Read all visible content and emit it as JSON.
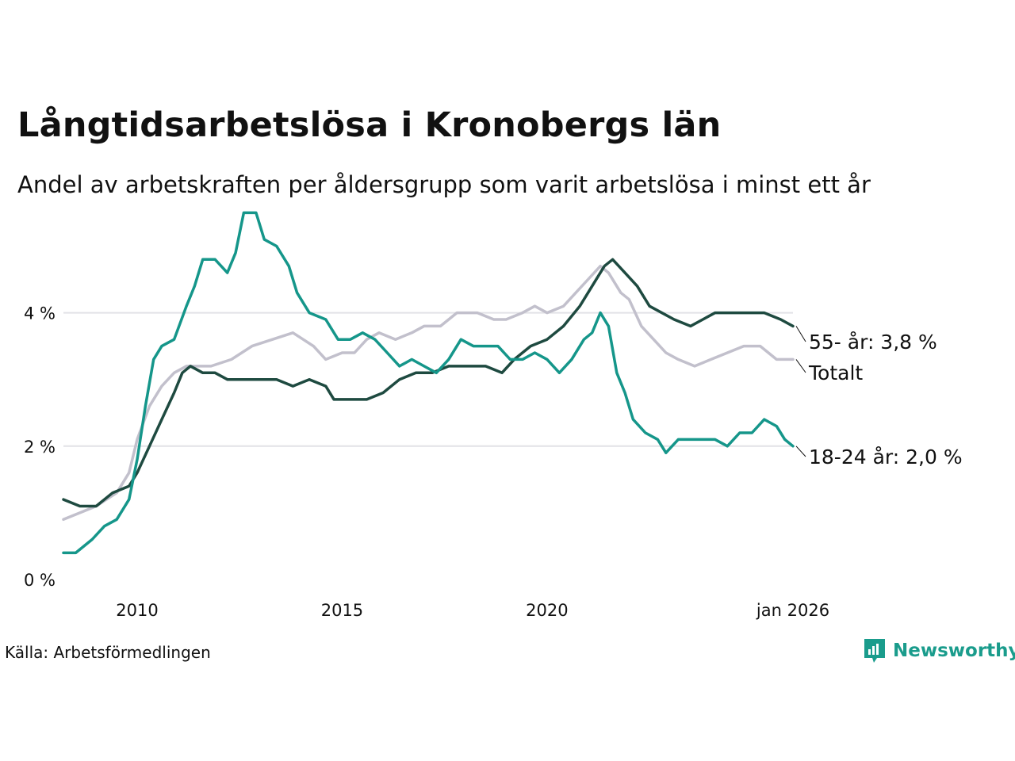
{
  "title": "Långtidsarbetslösa i Kronobergs län",
  "subtitle": "Andel av arbetskraften per åldersgrupp som varit arbetslösa i minst ett år",
  "source": "Källa: Arbetsförmedlingen",
  "brand": "Newsworthy",
  "colors": {
    "age_55_plus": "#1e4a40",
    "total": "#c2c0cc",
    "age_18_24": "#15968a",
    "grid": "#e2e2e6",
    "brand": "#1a9c8c"
  },
  "chart_data": {
    "type": "line",
    "title": "Långtidsarbetslösa i Kronobergs län",
    "xlabel": "",
    "ylabel": "",
    "xlim": [
      2008.2,
      2026.0
    ],
    "ylim": [
      0,
      5.6
    ],
    "y_ticks": [
      {
        "value": 0,
        "label": "0 %"
      },
      {
        "value": 2,
        "label": "2 %"
      },
      {
        "value": 4,
        "label": "4 %"
      }
    ],
    "x_ticks": [
      {
        "value": 2010,
        "label": "2010"
      },
      {
        "value": 2015,
        "label": "2015"
      },
      {
        "value": 2020,
        "label": "2020"
      },
      {
        "value": 2026,
        "label": "jan 2026"
      }
    ],
    "grid": "horizontal",
    "series": [
      {
        "name": "Totalt",
        "end_label": "Totalt",
        "color_key": "total",
        "points": [
          [
            2008.2,
            0.9
          ],
          [
            2008.6,
            1.0
          ],
          [
            2009.0,
            1.1
          ],
          [
            2009.5,
            1.3
          ],
          [
            2009.8,
            1.6
          ],
          [
            2010.0,
            2.1
          ],
          [
            2010.3,
            2.6
          ],
          [
            2010.6,
            2.9
          ],
          [
            2010.9,
            3.1
          ],
          [
            2011.2,
            3.2
          ],
          [
            2011.8,
            3.2
          ],
          [
            2012.3,
            3.3
          ],
          [
            2012.8,
            3.5
          ],
          [
            2013.3,
            3.6
          ],
          [
            2013.8,
            3.7
          ],
          [
            2014.3,
            3.5
          ],
          [
            2014.6,
            3.3
          ],
          [
            2015.0,
            3.4
          ],
          [
            2015.3,
            3.4
          ],
          [
            2015.6,
            3.6
          ],
          [
            2015.9,
            3.7
          ],
          [
            2016.3,
            3.6
          ],
          [
            2016.7,
            3.7
          ],
          [
            2017.0,
            3.8
          ],
          [
            2017.4,
            3.8
          ],
          [
            2017.8,
            4.0
          ],
          [
            2018.3,
            4.0
          ],
          [
            2018.7,
            3.9
          ],
          [
            2019.0,
            3.9
          ],
          [
            2019.4,
            4.0
          ],
          [
            2019.7,
            4.1
          ],
          [
            2020.0,
            4.0
          ],
          [
            2020.4,
            4.1
          ],
          [
            2020.7,
            4.3
          ],
          [
            2021.0,
            4.5
          ],
          [
            2021.3,
            4.7
          ],
          [
            2021.5,
            4.6
          ],
          [
            2021.8,
            4.3
          ],
          [
            2022.0,
            4.2
          ],
          [
            2022.3,
            3.8
          ],
          [
            2022.6,
            3.6
          ],
          [
            2022.9,
            3.4
          ],
          [
            2023.2,
            3.3
          ],
          [
            2023.6,
            3.2
          ],
          [
            2024.0,
            3.3
          ],
          [
            2024.4,
            3.4
          ],
          [
            2024.8,
            3.5
          ],
          [
            2025.2,
            3.5
          ],
          [
            2025.6,
            3.3
          ],
          [
            2026.0,
            3.3
          ]
        ]
      },
      {
        "name": "55- år",
        "end_label": "55- år: 3,8 %",
        "color_key": "age_55_plus",
        "points": [
          [
            2008.2,
            1.2
          ],
          [
            2008.6,
            1.1
          ],
          [
            2009.0,
            1.1
          ],
          [
            2009.4,
            1.3
          ],
          [
            2009.8,
            1.4
          ],
          [
            2010.0,
            1.6
          ],
          [
            2010.3,
            2.0
          ],
          [
            2010.6,
            2.4
          ],
          [
            2010.9,
            2.8
          ],
          [
            2011.1,
            3.1
          ],
          [
            2011.3,
            3.2
          ],
          [
            2011.6,
            3.1
          ],
          [
            2011.9,
            3.1
          ],
          [
            2012.2,
            3.0
          ],
          [
            2012.6,
            3.0
          ],
          [
            2013.0,
            3.0
          ],
          [
            2013.4,
            3.0
          ],
          [
            2013.8,
            2.9
          ],
          [
            2014.2,
            3.0
          ],
          [
            2014.6,
            2.9
          ],
          [
            2014.8,
            2.7
          ],
          [
            2015.2,
            2.7
          ],
          [
            2015.6,
            2.7
          ],
          [
            2016.0,
            2.8
          ],
          [
            2016.4,
            3.0
          ],
          [
            2016.8,
            3.1
          ],
          [
            2017.2,
            3.1
          ],
          [
            2017.6,
            3.2
          ],
          [
            2018.0,
            3.2
          ],
          [
            2018.5,
            3.2
          ],
          [
            2018.9,
            3.1
          ],
          [
            2019.2,
            3.3
          ],
          [
            2019.6,
            3.5
          ],
          [
            2020.0,
            3.6
          ],
          [
            2020.4,
            3.8
          ],
          [
            2020.8,
            4.1
          ],
          [
            2021.1,
            4.4
          ],
          [
            2021.4,
            4.7
          ],
          [
            2021.6,
            4.8
          ],
          [
            2021.9,
            4.6
          ],
          [
            2022.2,
            4.4
          ],
          [
            2022.5,
            4.1
          ],
          [
            2022.8,
            4.0
          ],
          [
            2023.1,
            3.9
          ],
          [
            2023.5,
            3.8
          ],
          [
            2023.8,
            3.9
          ],
          [
            2024.1,
            4.0
          ],
          [
            2024.5,
            4.0
          ],
          [
            2024.9,
            4.0
          ],
          [
            2025.3,
            4.0
          ],
          [
            2025.7,
            3.9
          ],
          [
            2026.0,
            3.8
          ]
        ]
      },
      {
        "name": "18-24 år",
        "end_label": "18-24 år: 2,0 %",
        "color_key": "age_18_24",
        "points": [
          [
            2008.2,
            0.4
          ],
          [
            2008.5,
            0.4
          ],
          [
            2008.9,
            0.6
          ],
          [
            2009.2,
            0.8
          ],
          [
            2009.5,
            0.9
          ],
          [
            2009.8,
            1.2
          ],
          [
            2010.0,
            1.8
          ],
          [
            2010.2,
            2.6
          ],
          [
            2010.4,
            3.3
          ],
          [
            2010.6,
            3.5
          ],
          [
            2010.9,
            3.6
          ],
          [
            2011.2,
            4.1
          ],
          [
            2011.4,
            4.4
          ],
          [
            2011.6,
            4.8
          ],
          [
            2011.9,
            4.8
          ],
          [
            2012.2,
            4.6
          ],
          [
            2012.4,
            4.9
          ],
          [
            2012.6,
            5.5
          ],
          [
            2012.9,
            5.5
          ],
          [
            2013.1,
            5.1
          ],
          [
            2013.4,
            5.0
          ],
          [
            2013.7,
            4.7
          ],
          [
            2013.9,
            4.3
          ],
          [
            2014.2,
            4.0
          ],
          [
            2014.6,
            3.9
          ],
          [
            2014.9,
            3.6
          ],
          [
            2015.2,
            3.6
          ],
          [
            2015.5,
            3.7
          ],
          [
            2015.8,
            3.6
          ],
          [
            2016.1,
            3.4
          ],
          [
            2016.4,
            3.2
          ],
          [
            2016.7,
            3.3
          ],
          [
            2017.0,
            3.2
          ],
          [
            2017.3,
            3.1
          ],
          [
            2017.6,
            3.3
          ],
          [
            2017.9,
            3.6
          ],
          [
            2018.2,
            3.5
          ],
          [
            2018.5,
            3.5
          ],
          [
            2018.8,
            3.5
          ],
          [
            2019.1,
            3.3
          ],
          [
            2019.4,
            3.3
          ],
          [
            2019.7,
            3.4
          ],
          [
            2020.0,
            3.3
          ],
          [
            2020.3,
            3.1
          ],
          [
            2020.6,
            3.3
          ],
          [
            2020.9,
            3.6
          ],
          [
            2021.1,
            3.7
          ],
          [
            2021.3,
            4.0
          ],
          [
            2021.5,
            3.8
          ],
          [
            2021.7,
            3.1
          ],
          [
            2021.9,
            2.8
          ],
          [
            2022.1,
            2.4
          ],
          [
            2022.4,
            2.2
          ],
          [
            2022.7,
            2.1
          ],
          [
            2022.9,
            1.9
          ],
          [
            2023.2,
            2.1
          ],
          [
            2023.5,
            2.1
          ],
          [
            2023.8,
            2.1
          ],
          [
            2024.1,
            2.1
          ],
          [
            2024.4,
            2.0
          ],
          [
            2024.7,
            2.2
          ],
          [
            2025.0,
            2.2
          ],
          [
            2025.3,
            2.4
          ],
          [
            2025.6,
            2.3
          ],
          [
            2025.8,
            2.1
          ],
          [
            2026.0,
            2.0
          ]
        ]
      }
    ]
  }
}
